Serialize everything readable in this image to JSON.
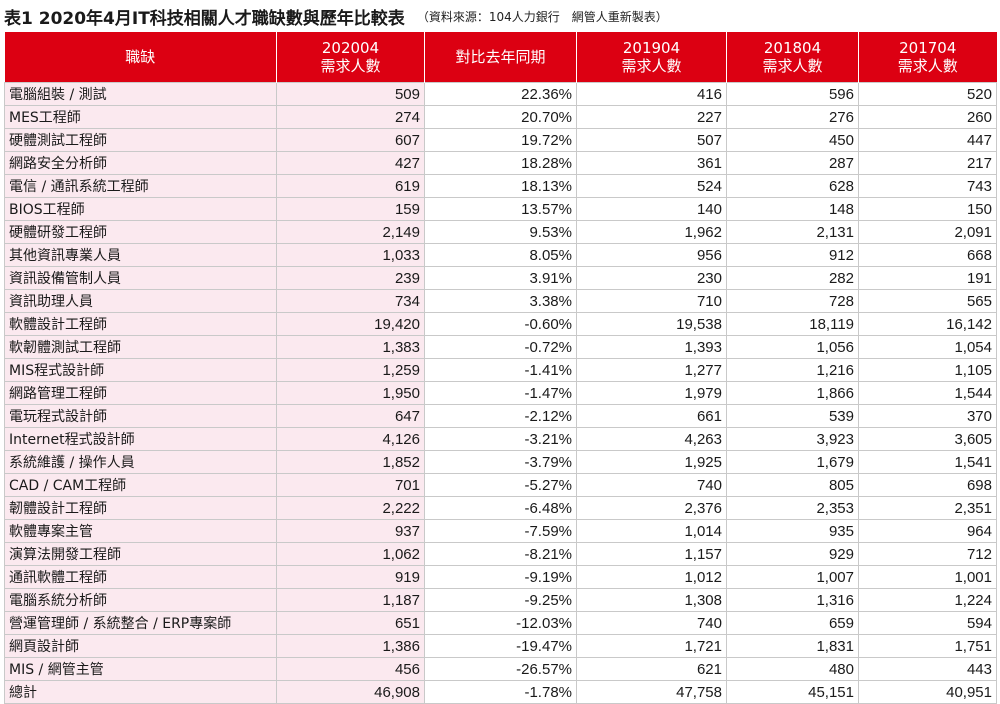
{
  "title": {
    "main": "表1 2020年4月IT科技相關人才職缺數與歷年比較表",
    "source": "（資料來源：104人力銀行　網管人重新製表）"
  },
  "columns": [
    {
      "line1": "職缺",
      "line2": ""
    },
    {
      "line1": "202004",
      "line2": "需求人數"
    },
    {
      "line1": "對比去年同期",
      "line2": ""
    },
    {
      "line1": "201904",
      "line2": "需求人數"
    },
    {
      "line1": "201804",
      "line2": "需求人數"
    },
    {
      "line1": "201704",
      "line2": "需求人數"
    }
  ],
  "rows": [
    {
      "job": "電腦組裝 / 測試",
      "d202004": "509",
      "yoy": "22.36%",
      "d201904": "416",
      "d201804": "596",
      "d201704": "520"
    },
    {
      "job": "MES工程師",
      "d202004": "274",
      "yoy": "20.70%",
      "d201904": "227",
      "d201804": "276",
      "d201704": "260"
    },
    {
      "job": "硬體測試工程師",
      "d202004": "607",
      "yoy": "19.72%",
      "d201904": "507",
      "d201804": "450",
      "d201704": "447"
    },
    {
      "job": "網路安全分析師",
      "d202004": "427",
      "yoy": "18.28%",
      "d201904": "361",
      "d201804": "287",
      "d201704": "217"
    },
    {
      "job": "電信 / 通訊系統工程師",
      "d202004": "619",
      "yoy": "18.13%",
      "d201904": "524",
      "d201804": "628",
      "d201704": "743"
    },
    {
      "job": "BIOS工程師",
      "d202004": "159",
      "yoy": "13.57%",
      "d201904": "140",
      "d201804": "148",
      "d201704": "150"
    },
    {
      "job": "硬體研發工程師",
      "d202004": "2,149",
      "yoy": "9.53%",
      "d201904": "1,962",
      "d201804": "2,131",
      "d201704": "2,091"
    },
    {
      "job": "其他資訊專業人員",
      "d202004": "1,033",
      "yoy": "8.05%",
      "d201904": "956",
      "d201804": "912",
      "d201704": "668"
    },
    {
      "job": "資訊設備管制人員",
      "d202004": "239",
      "yoy": "3.91%",
      "d201904": "230",
      "d201804": "282",
      "d201704": "191"
    },
    {
      "job": "資訊助理人員",
      "d202004": "734",
      "yoy": "3.38%",
      "d201904": "710",
      "d201804": "728",
      "d201704": "565"
    },
    {
      "job": "軟體設計工程師",
      "d202004": "19,420",
      "yoy": "-0.60%",
      "d201904": "19,538",
      "d201804": "18,119",
      "d201704": "16,142"
    },
    {
      "job": "軟韌體測試工程師",
      "d202004": "1,383",
      "yoy": "-0.72%",
      "d201904": "1,393",
      "d201804": "1,056",
      "d201704": "1,054"
    },
    {
      "job": "MIS程式設計師",
      "d202004": "1,259",
      "yoy": "-1.41%",
      "d201904": "1,277",
      "d201804": "1,216",
      "d201704": "1,105"
    },
    {
      "job": "網路管理工程師",
      "d202004": "1,950",
      "yoy": "-1.47%",
      "d201904": "1,979",
      "d201804": "1,866",
      "d201704": "1,544"
    },
    {
      "job": "電玩程式設計師",
      "d202004": "647",
      "yoy": "-2.12%",
      "d201904": "661",
      "d201804": "539",
      "d201704": "370"
    },
    {
      "job": "Internet程式設計師",
      "d202004": "4,126",
      "yoy": "-3.21%",
      "d201904": "4,263",
      "d201804": "3,923",
      "d201704": "3,605"
    },
    {
      "job": "系統維護 / 操作人員",
      "d202004": "1,852",
      "yoy": "-3.79%",
      "d201904": "1,925",
      "d201804": "1,679",
      "d201704": "1,541"
    },
    {
      "job": "CAD / CAM工程師",
      "d202004": "701",
      "yoy": "-5.27%",
      "d201904": "740",
      "d201804": "805",
      "d201704": "698"
    },
    {
      "job": "韌體設計工程師",
      "d202004": "2,222",
      "yoy": "-6.48%",
      "d201904": "2,376",
      "d201804": "2,353",
      "d201704": "2,351"
    },
    {
      "job": "軟體專案主管",
      "d202004": "937",
      "yoy": "-7.59%",
      "d201904": "1,014",
      "d201804": "935",
      "d201704": "964"
    },
    {
      "job": "演算法開發工程師",
      "d202004": "1,062",
      "yoy": "-8.21%",
      "d201904": "1,157",
      "d201804": "929",
      "d201704": "712"
    },
    {
      "job": "通訊軟體工程師",
      "d202004": "919",
      "yoy": "-9.19%",
      "d201904": "1,012",
      "d201804": "1,007",
      "d201704": "1,001"
    },
    {
      "job": "電腦系統分析師",
      "d202004": "1,187",
      "yoy": "-9.25%",
      "d201904": "1,308",
      "d201804": "1,316",
      "d201704": "1,224"
    },
    {
      "job": "營運管理師 / 系統整合 / ERP專案師",
      "d202004": "651",
      "yoy": "-12.03%",
      "d201904": "740",
      "d201804": "659",
      "d201704": "594"
    },
    {
      "job": "網頁設計師",
      "d202004": "1,386",
      "yoy": "-19.47%",
      "d201904": "1,721",
      "d201804": "1,831",
      "d201704": "1,751"
    },
    {
      "job": "MIS / 網管主管",
      "d202004": "456",
      "yoy": "-26.57%",
      "d201904": "621",
      "d201804": "480",
      "d201704": "443"
    },
    {
      "job": "總計",
      "d202004": "46,908",
      "yoy": "-1.78%",
      "d201904": "47,758",
      "d201804": "45,151",
      "d201704": "40,951"
    }
  ],
  "colors": {
    "header_bg": "#dc0012",
    "header_text": "#ffffff",
    "highlight_bg": "#fbe9ef",
    "grid_line": "#c9c9c9"
  }
}
